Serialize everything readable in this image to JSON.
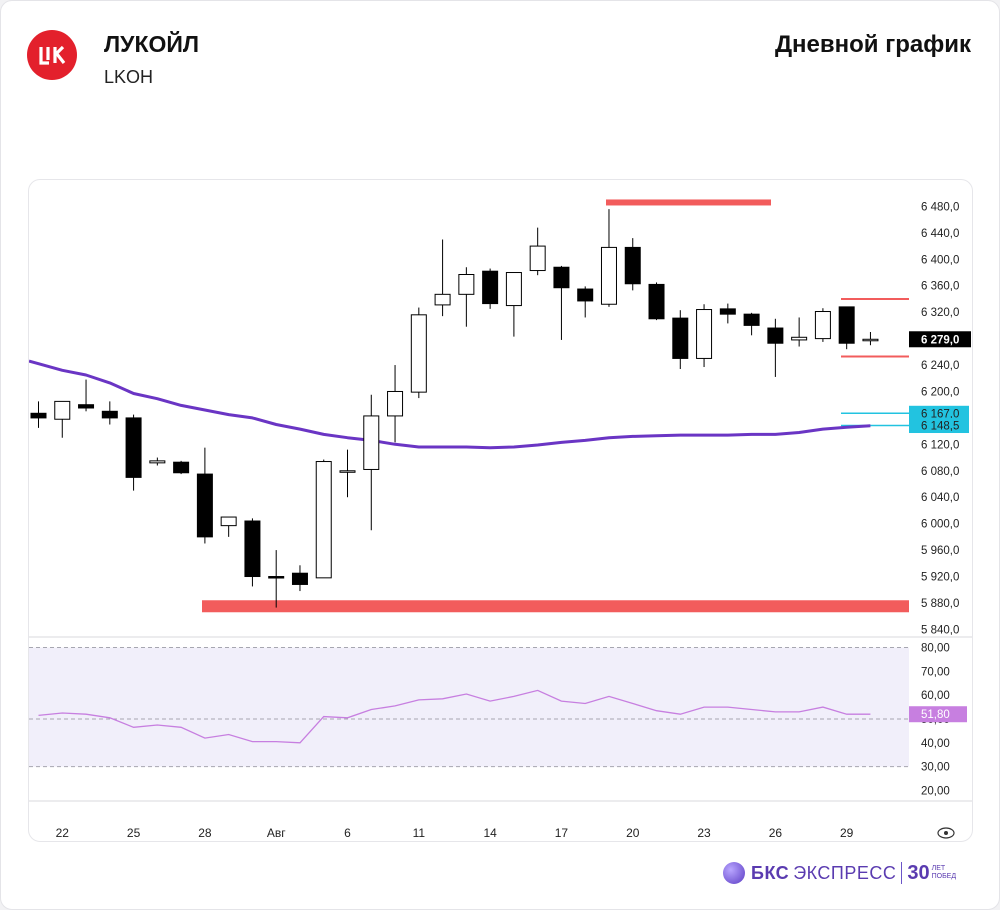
{
  "header": {
    "company": "ЛУКОЙЛ",
    "ticker": "LKOH",
    "chart_kind": "Дневной график"
  },
  "footer": {
    "brand_bold": "БКС",
    "brand_rest": "ЭКСПРЕСС",
    "anniversary_number": "30",
    "anniversary_line1": "ЛЕТ",
    "anniversary_line2": "ПОБЕД"
  },
  "colors": {
    "logo": "#e3202c",
    "candle_up_fill": "#ffffff",
    "candle_down_fill": "#000000",
    "moving_average": "#6a35c4",
    "resistance_level": "#f25c5c",
    "support_level": "#f25c5c",
    "target_level": "#22c3e0",
    "rsi_line": "#c77fe0",
    "rsi_band": "#f1effa"
  },
  "chart_data": {
    "type": "candlestick",
    "title": "",
    "x_tick_labels": [
      "22",
      "25",
      "28",
      "Авг",
      "6",
      "11",
      "14",
      "17",
      "20",
      "23",
      "26",
      "29"
    ],
    "price_axis_ticks": [
      "6 480,0",
      "6 440,0",
      "6 400,0",
      "6 360,0",
      "6 320,0",
      "6 280,0",
      "6 240,0",
      "6 200,0",
      "6 160,0",
      "6 120,0",
      "6 080,0",
      "6 040,0",
      "6 000,0",
      "5 960,0",
      "5 920,0",
      "5 880,0",
      "5 840,0"
    ],
    "price_ylim": [
      5830,
      6520
    ],
    "current_price_label": "6 279,0",
    "level_labels": [
      "6 167,0",
      "6 148,5"
    ],
    "candles": [
      {
        "o": 6167,
        "h": 6185,
        "l": 6145,
        "c": 6160
      },
      {
        "o": 6158,
        "h": 6180,
        "l": 6130,
        "c": 6185
      },
      {
        "o": 6180,
        "h": 6218,
        "l": 6170,
        "c": 6175
      },
      {
        "o": 6170,
        "h": 6185,
        "l": 6150,
        "c": 6160
      },
      {
        "o": 6160,
        "h": 6165,
        "l": 6050,
        "c": 6070
      },
      {
        "o": 6092,
        "h": 6100,
        "l": 6088,
        "c": 6095
      },
      {
        "o": 6093,
        "h": 6095,
        "l": 6075,
        "c": 6077
      },
      {
        "o": 6075,
        "h": 6115,
        "l": 5970,
        "c": 5980
      },
      {
        "o": 5997,
        "h": 6010,
        "l": 5980,
        "c": 6010
      },
      {
        "o": 6004,
        "h": 6008,
        "l": 5905,
        "c": 5920
      },
      {
        "o": 5920,
        "h": 5960,
        "l": 5873,
        "c": 5918
      },
      {
        "o": 5925,
        "h": 5937,
        "l": 5898,
        "c": 5908
      },
      {
        "o": 5918,
        "h": 6097,
        "l": 5918,
        "c": 6094
      },
      {
        "o": 6080,
        "h": 6112,
        "l": 6040,
        "c": 6080
      },
      {
        "o": 6082,
        "h": 6195,
        "l": 5990,
        "c": 6163
      },
      {
        "o": 6163,
        "h": 6240,
        "l": 6123,
        "c": 6200
      },
      {
        "o": 6199,
        "h": 6327,
        "l": 6190,
        "c": 6316
      },
      {
        "o": 6331,
        "h": 6430,
        "l": 6314,
        "c": 6347
      },
      {
        "o": 6347,
        "h": 6388,
        "l": 6298,
        "c": 6377
      },
      {
        "o": 6382,
        "h": 6386,
        "l": 6325,
        "c": 6333
      },
      {
        "o": 6330,
        "h": 6380,
        "l": 6283,
        "c": 6380
      },
      {
        "o": 6383,
        "h": 6448,
        "l": 6376,
        "c": 6420
      },
      {
        "o": 6388,
        "h": 6390,
        "l": 6278,
        "c": 6357
      },
      {
        "o": 6355,
        "h": 6359,
        "l": 6312,
        "c": 6337
      },
      {
        "o": 6332,
        "h": 6476,
        "l": 6328,
        "c": 6418
      },
      {
        "o": 6418,
        "h": 6432,
        "l": 6353,
        "c": 6363
      },
      {
        "o": 6362,
        "h": 6365,
        "l": 6308,
        "c": 6310
      },
      {
        "o": 6311,
        "h": 6323,
        "l": 6234,
        "c": 6250
      },
      {
        "o": 6250,
        "h": 6332,
        "l": 6237,
        "c": 6324
      },
      {
        "o": 6325,
        "h": 6333,
        "l": 6303,
        "c": 6317
      },
      {
        "o": 6317,
        "h": 6319,
        "l": 6285,
        "c": 6300
      },
      {
        "o": 6296,
        "h": 6310,
        "l": 6222,
        "c": 6273
      },
      {
        "o": 6278,
        "h": 6312,
        "l": 6268,
        "c": 6282
      },
      {
        "o": 6280,
        "h": 6326,
        "l": 6275,
        "c": 6321
      },
      {
        "o": 6328,
        "h": 6328,
        "l": 6264,
        "c": 6273
      },
      {
        "o": 6277,
        "h": 6290,
        "l": 6270,
        "c": 6279
      }
    ],
    "moving_average": [
      6242,
      6232,
      6225,
      6213,
      6197,
      6189,
      6179,
      6172,
      6165,
      6160,
      6150,
      6143,
      6135,
      6130,
      6126,
      6120,
      6116,
      6116,
      6116,
      6115,
      6116,
      6119,
      6123,
      6126,
      6130,
      6132,
      6133,
      6134,
      6134,
      6134,
      6135,
      6135,
      6138,
      6143,
      6146,
      6148
    ],
    "levels": [
      {
        "kind": "resistance",
        "value": 6486
      },
      {
        "kind": "resistance",
        "value": 6340
      },
      {
        "kind": "resistance",
        "value": 6253
      },
      {
        "kind": "target",
        "value": 6167
      },
      {
        "kind": "target",
        "value": 6148.5
      },
      {
        "kind": "support",
        "value": 5875
      }
    ],
    "rsi": {
      "axis_ticks": [
        "80,00",
        "70,00",
        "60,00",
        "50,00",
        "40,00",
        "30,00",
        "20,00"
      ],
      "ylim": [
        16,
        84
      ],
      "band": [
        30,
        80
      ],
      "current_label": "51,80",
      "values": [
        51.5,
        52.5,
        52.0,
        50.5,
        46.5,
        47.5,
        46.5,
        42.0,
        43.5,
        40.5,
        40.5,
        40.0,
        51.0,
        50.5,
        54.0,
        55.5,
        58.0,
        58.5,
        60.5,
        57.5,
        59.5,
        62.0,
        57.5,
        56.5,
        59.5,
        56.5,
        53.5,
        52.0,
        55.0,
        55.0,
        54.0,
        53.0,
        53.0,
        55.0,
        52.0,
        52.0
      ]
    }
  }
}
